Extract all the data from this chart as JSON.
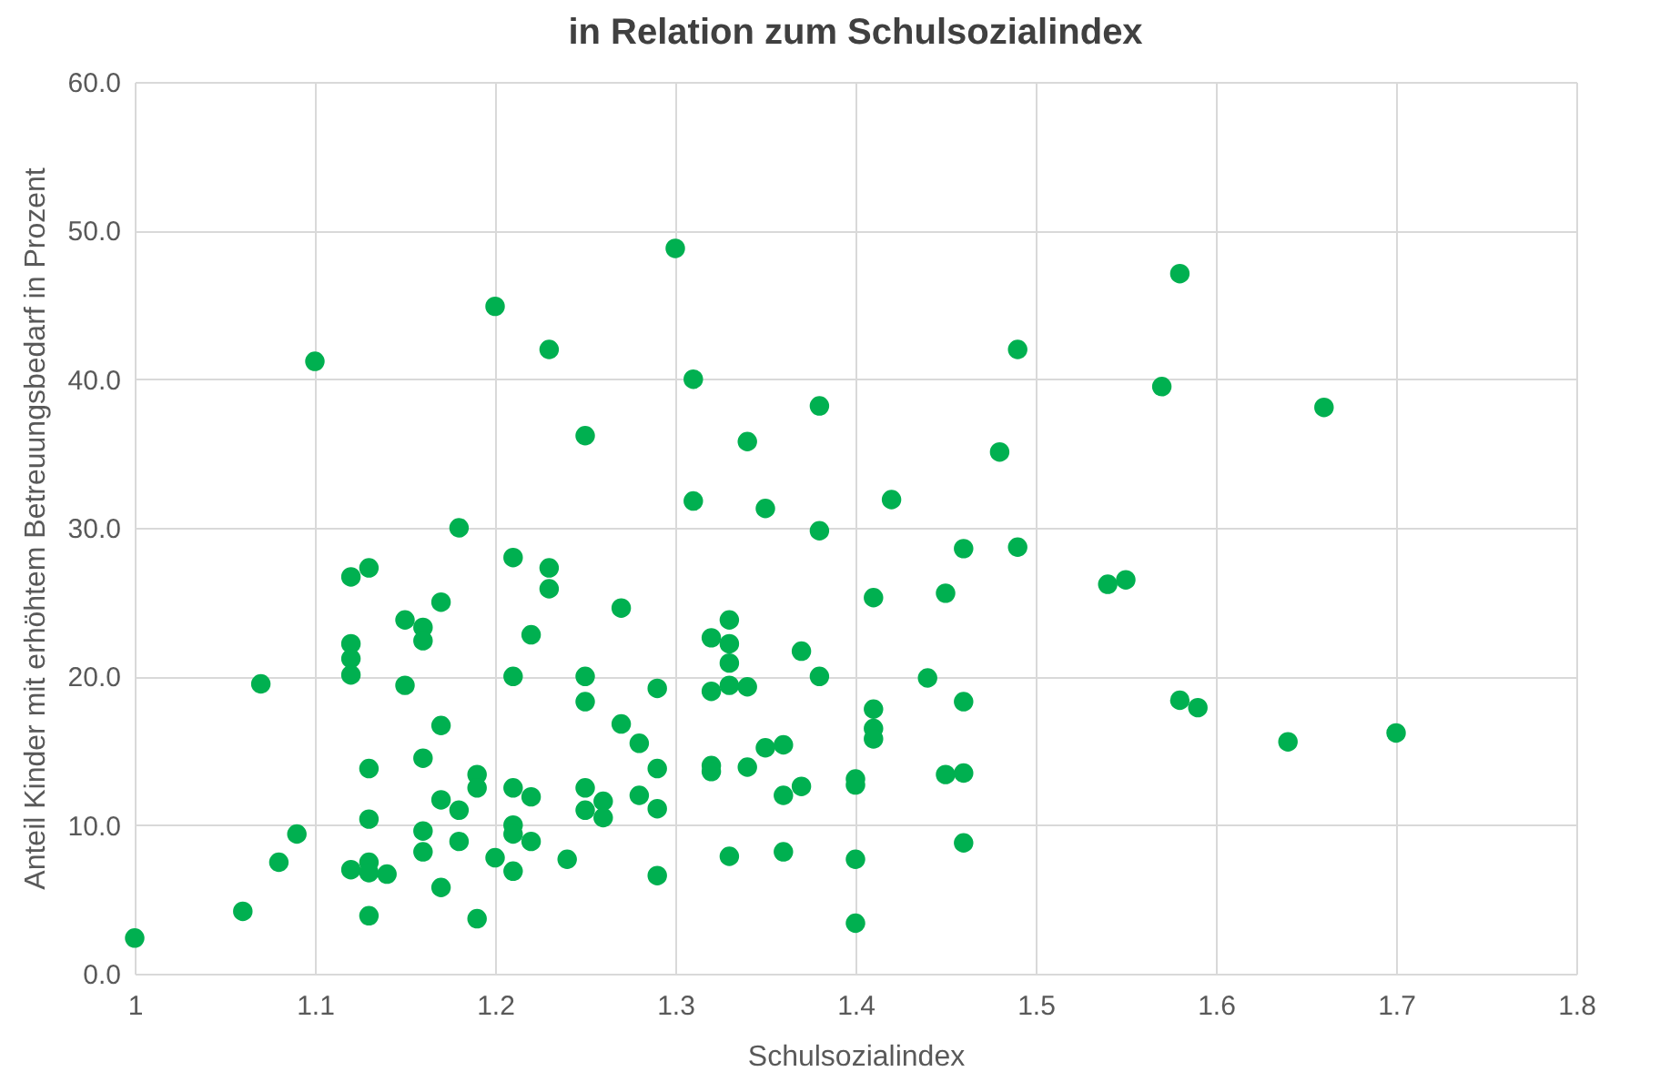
{
  "chart_data": {
    "type": "scatter",
    "title": "in Relation zum Schulsozialindex",
    "xlabel": "Schulsozialindex",
    "ylabel": "Anteil Kinder mit erhöhtem Betreuungsbedarf in Prozent",
    "xlim": [
      1,
      1.8
    ],
    "xticks": [
      1,
      1.1,
      1.2,
      1.3,
      1.4,
      1.5,
      1.6,
      1.7,
      1.8
    ],
    "ylim": [
      0,
      60
    ],
    "yticks": [
      {
        "value": 0,
        "label": "0.0"
      },
      {
        "value": 10,
        "label": "10.0"
      },
      {
        "value": 20,
        "label": "20.0"
      },
      {
        "value": 30,
        "label": "30.0"
      },
      {
        "value": 40,
        "label": "40.0"
      },
      {
        "value": 50,
        "label": "50.0"
      },
      {
        "value": 60,
        "label": "60.0"
      }
    ],
    "grid": true,
    "marker": "circle",
    "series": [
      {
        "color": "#00b050",
        "x": [
          1.0,
          1.06,
          1.07,
          1.08,
          1.09,
          1.1,
          1.12,
          1.12,
          1.12,
          1.12,
          1.12,
          1.13,
          1.13,
          1.13,
          1.13,
          1.13,
          1.13,
          1.14,
          1.15,
          1.15,
          1.16,
          1.16,
          1.16,
          1.16,
          1.16,
          1.17,
          1.17,
          1.17,
          1.17,
          1.18,
          1.18,
          1.18,
          1.19,
          1.19,
          1.19,
          1.2,
          1.2,
          1.21,
          1.21,
          1.21,
          1.21,
          1.21,
          1.21,
          1.22,
          1.22,
          1.22,
          1.23,
          1.23,
          1.23,
          1.24,
          1.25,
          1.25,
          1.25,
          1.25,
          1.25,
          1.26,
          1.26,
          1.27,
          1.27,
          1.28,
          1.28,
          1.29,
          1.29,
          1.29,
          1.29,
          1.3,
          1.31,
          1.31,
          1.32,
          1.32,
          1.32,
          1.32,
          1.33,
          1.33,
          1.33,
          1.33,
          1.33,
          1.34,
          1.34,
          1.34,
          1.35,
          1.35,
          1.36,
          1.36,
          1.36,
          1.37,
          1.37,
          1.38,
          1.38,
          1.38,
          1.4,
          1.4,
          1.4,
          1.4,
          1.41,
          1.41,
          1.41,
          1.41,
          1.42,
          1.44,
          1.45,
          1.45,
          1.46,
          1.46,
          1.46,
          1.46,
          1.48,
          1.49,
          1.49,
          1.54,
          1.55,
          1.57,
          1.58,
          1.58,
          1.59,
          1.64,
          1.66,
          1.7
        ],
        "values": [
          2.4,
          4.2,
          19.5,
          7.5,
          9.4,
          41.2,
          26.7,
          22.2,
          21.2,
          20.1,
          7.0,
          27.3,
          13.8,
          10.4,
          7.5,
          6.8,
          3.9,
          6.7,
          23.8,
          19.4,
          23.3,
          22.4,
          14.5,
          9.6,
          8.2,
          25.0,
          16.7,
          11.7,
          5.8,
          30.0,
          11.0,
          8.9,
          13.4,
          12.5,
          3.7,
          44.9,
          7.8,
          28.0,
          20.0,
          12.5,
          10.0,
          9.4,
          6.9,
          22.8,
          11.9,
          8.9,
          42.0,
          27.3,
          25.9,
          7.7,
          36.2,
          20.0,
          18.3,
          12.5,
          11.0,
          11.6,
          10.5,
          24.6,
          16.8,
          15.5,
          12.0,
          19.2,
          13.8,
          11.1,
          6.6,
          48.8,
          40.0,
          31.8,
          22.6,
          19.0,
          14.0,
          13.6,
          23.8,
          22.2,
          20.9,
          19.4,
          7.9,
          35.8,
          19.3,
          13.9,
          31.3,
          15.2,
          15.4,
          12.0,
          8.2,
          21.7,
          12.6,
          38.2,
          29.8,
          20.0,
          13.1,
          12.7,
          7.7,
          3.4,
          25.3,
          17.8,
          16.5,
          15.8,
          31.9,
          19.9,
          25.6,
          13.4,
          28.6,
          18.3,
          13.5,
          8.8,
          35.1,
          42.0,
          28.7,
          26.2,
          26.5,
          39.5,
          47.1,
          18.4,
          17.9,
          15.6,
          38.1,
          16.2
        ]
      }
    ]
  }
}
